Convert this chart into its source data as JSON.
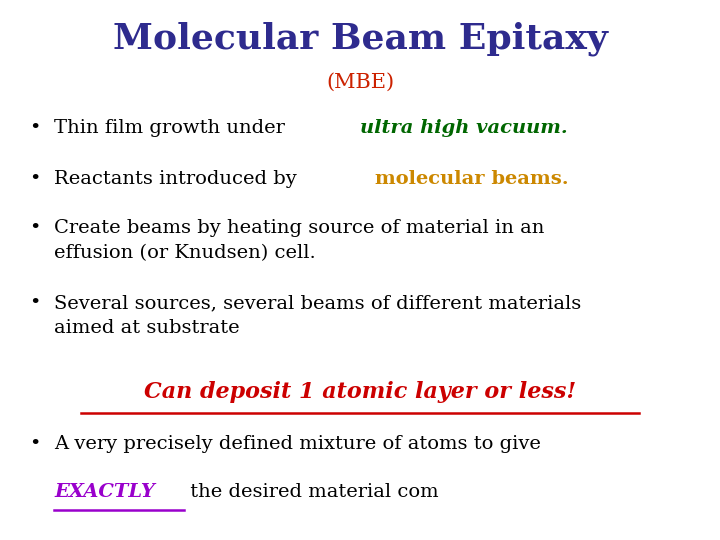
{
  "title": "Molecular Beam Epitaxy",
  "title_color": "#2E2B8E",
  "title_fontsize": 26,
  "subtitle": "(MBE)",
  "subtitle_color": "#CC2200",
  "subtitle_fontsize": 15,
  "background_color": "#FFFFFF",
  "bullet_color": "#000000",
  "bullet_fontsize": 14,
  "special_line": "Can deposit 1 atomic layer or less!",
  "special_line_color": "#CC0000",
  "special_line_fontsize": 16,
  "last_bullet_highlight": "EXACTLY",
  "last_bullet_highlight_color": "#9900CC",
  "last_bullet_color": "#000000"
}
